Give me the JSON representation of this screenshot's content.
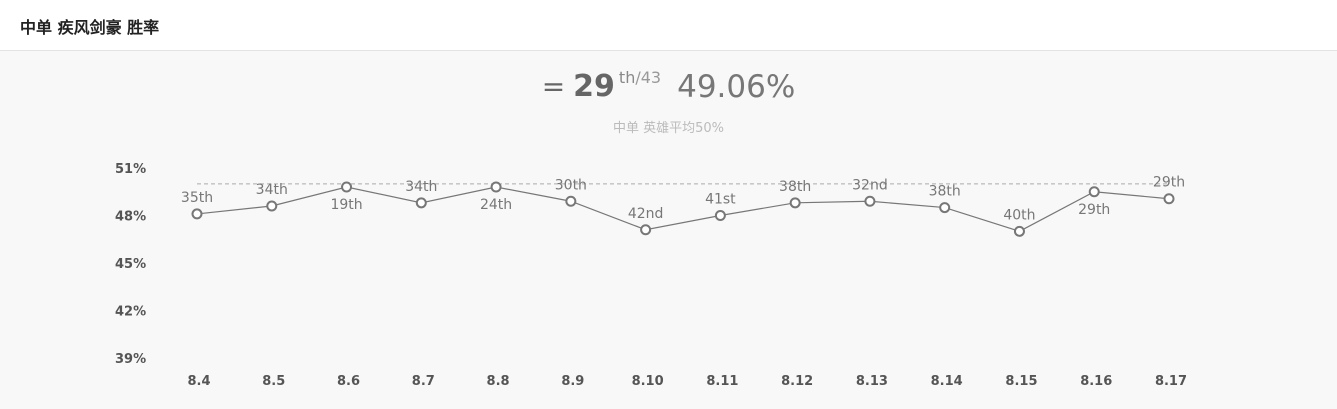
{
  "header": {
    "title": "中单 疾风剑豪 胜率"
  },
  "summary": {
    "rank_symbol": "=",
    "rank": "29",
    "rank_suffix": "th",
    "rank_total": "/43",
    "win_rate": "49.06%",
    "average_note": "中单 英雄平均50%"
  },
  "colors": {
    "line": "#777777",
    "reference_line": "#aaaaaa",
    "point_fill": "#ffffff",
    "point_stroke": "#777777"
  },
  "chart_data": {
    "type": "line",
    "title": "",
    "xlabel": "",
    "ylabel": "",
    "yticks": [
      "51%",
      "48%",
      "45%",
      "42%",
      "39%"
    ],
    "ylim": [
      39,
      51
    ],
    "reference_value": 50,
    "categories": [
      "8.4",
      "8.5",
      "8.6",
      "8.7",
      "8.8",
      "8.9",
      "8.10",
      "8.11",
      "8.12",
      "8.13",
      "8.14",
      "8.15",
      "8.16",
      "8.17"
    ],
    "series": [
      {
        "values": [
          48.1,
          48.6,
          49.8,
          48.8,
          49.8,
          48.9,
          47.1,
          48.0,
          48.8,
          48.9,
          48.5,
          47.0,
          49.5,
          49.06
        ],
        "labels": [
          "35th",
          "34th",
          "19th",
          "34th",
          "24th",
          "30th",
          "42nd",
          "41st",
          "38th",
          "32nd",
          "38th",
          "40th",
          "29th",
          "29th"
        ],
        "label_positions": [
          "above",
          "above",
          "below",
          "above",
          "below",
          "above",
          "above",
          "above",
          "above",
          "above",
          "above",
          "above",
          "below",
          "above"
        ]
      }
    ],
    "grid": false
  }
}
